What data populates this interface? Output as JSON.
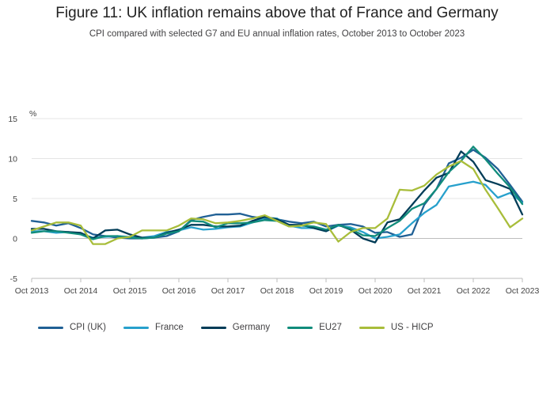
{
  "title": "Figure 11: UK inflation remains above that of France and Germany",
  "subtitle": "CPI compared with selected G7 and EU annual inflation rates, October 2013 to October 2023",
  "chart_data": {
    "type": "line",
    "title": "Figure 11: UK inflation remains above that of France and Germany",
    "subtitle": "CPI compared with selected G7 and EU annual inflation rates, October 2013 to October 2023",
    "xlabel": "",
    "ylabel": "%",
    "ylim": [
      -5,
      15
    ],
    "yticks": [
      -5,
      0,
      5,
      10,
      15
    ],
    "x_start": "Oct 2013",
    "x_end": "Oct 2023",
    "xticks": [
      "Oct 2013",
      "Oct 2014",
      "Oct 2015",
      "Oct 2016",
      "Oct 2017",
      "Oct 2018",
      "Oct 2019",
      "Oct 2020",
      "Oct 2021",
      "Oct 2022",
      "Oct 2023"
    ],
    "legend_position": "bottom",
    "grid": true,
    "series": [
      {
        "name": "CPI (UK)",
        "color": "#206095",
        "x": [
          0,
          3,
          6,
          9,
          12,
          15,
          18,
          21,
          24,
          27,
          30,
          33,
          36,
          39,
          42,
          45,
          48,
          51,
          54,
          57,
          60,
          63,
          66,
          69,
          72,
          75,
          78,
          81,
          84,
          87,
          90,
          93,
          96,
          99,
          102,
          105,
          108,
          111,
          114,
          117,
          120
        ],
        "values": [
          2.2,
          2.0,
          1.6,
          1.9,
          1.3,
          0.5,
          0.3,
          0.1,
          0.0,
          0.0,
          0.1,
          0.3,
          0.9,
          2.3,
          2.7,
          3.0,
          3.0,
          3.1,
          2.7,
          2.5,
          2.4,
          2.1,
          1.9,
          2.1,
          1.5,
          1.7,
          1.8,
          1.5,
          0.7,
          0.8,
          0.2,
          0.5,
          4.2,
          6.2,
          9.4,
          10.1,
          11.1,
          10.1,
          8.7,
          6.7,
          4.6
        ]
      },
      {
        "name": "France",
        "color": "#27a0cc",
        "x": [
          0,
          3,
          6,
          9,
          12,
          15,
          18,
          21,
          24,
          27,
          30,
          33,
          36,
          39,
          42,
          45,
          48,
          51,
          54,
          57,
          60,
          63,
          66,
          69,
          72,
          75,
          78,
          81,
          84,
          87,
          90,
          93,
          96,
          99,
          102,
          105,
          108,
          111,
          114,
          117,
          120
        ],
        "values": [
          0.9,
          0.9,
          0.7,
          0.8,
          0.5,
          0.1,
          0.2,
          0.3,
          0.2,
          0.1,
          0.3,
          0.8,
          1.0,
          1.4,
          1.1,
          1.2,
          1.4,
          1.5,
          2.0,
          2.6,
          2.5,
          1.6,
          1.3,
          1.3,
          0.9,
          1.6,
          1.4,
          0.8,
          0.0,
          0.2,
          0.5,
          1.9,
          3.2,
          4.2,
          6.5,
          6.8,
          7.1,
          6.7,
          5.1,
          5.7,
          4.5
        ]
      },
      {
        "name": "Germany",
        "color": "#003c57",
        "x": [
          0,
          3,
          6,
          9,
          12,
          15,
          18,
          21,
          24,
          27,
          30,
          33,
          36,
          39,
          42,
          45,
          48,
          51,
          54,
          57,
          60,
          63,
          66,
          69,
          72,
          75,
          78,
          81,
          84,
          87,
          90,
          93,
          96,
          99,
          102,
          105,
          108,
          111,
          114,
          117,
          120
        ],
        "values": [
          1.2,
          1.2,
          0.9,
          0.8,
          0.7,
          0.0,
          1.0,
          1.1,
          0.5,
          0.1,
          0.1,
          0.7,
          1.1,
          1.7,
          1.7,
          1.5,
          1.5,
          1.6,
          2.2,
          2.7,
          2.4,
          1.7,
          1.7,
          1.3,
          0.9,
          1.7,
          1.1,
          0.0,
          -0.5,
          2.0,
          2.4,
          4.2,
          6.0,
          7.6,
          8.2,
          10.9,
          9.6,
          7.3,
          6.8,
          6.2,
          3.0
        ]
      },
      {
        "name": "EU27",
        "color": "#118c7b",
        "x": [
          0,
          3,
          6,
          9,
          12,
          15,
          18,
          21,
          24,
          27,
          30,
          33,
          36,
          39,
          42,
          45,
          48,
          51,
          54,
          57,
          60,
          63,
          66,
          69,
          72,
          75,
          78,
          81,
          84,
          87,
          90,
          93,
          96,
          99,
          102,
          105,
          108,
          111,
          114,
          117,
          120
        ],
        "values": [
          0.7,
          0.9,
          0.9,
          0.7,
          0.5,
          -0.1,
          0.3,
          0.3,
          0.1,
          0.0,
          0.1,
          0.6,
          0.9,
          2.2,
          2.1,
          1.4,
          1.9,
          1.9,
          2.0,
          2.3,
          2.2,
          1.5,
          1.6,
          1.5,
          1.1,
          1.7,
          1.2,
          0.4,
          0.3,
          1.3,
          2.2,
          3.7,
          4.4,
          6.2,
          8.3,
          9.7,
          11.5,
          9.9,
          8.1,
          6.4,
          4.3
        ]
      },
      {
        "name": "US - HICP",
        "color": "#a8bd3a",
        "x": [
          0,
          3,
          6,
          9,
          12,
          15,
          18,
          21,
          24,
          27,
          30,
          33,
          36,
          39,
          42,
          45,
          48,
          51,
          54,
          57,
          60,
          63,
          66,
          69,
          72,
          75,
          78,
          81,
          84,
          87,
          90,
          93,
          96,
          99,
          102,
          105,
          108,
          111,
          114,
          117,
          120
        ],
        "values": [
          1.0,
          1.5,
          2.0,
          2.0,
          1.6,
          -0.7,
          -0.7,
          0.0,
          0.2,
          1.0,
          1.0,
          1.0,
          1.6,
          2.5,
          2.4,
          1.9,
          2.0,
          2.2,
          2.5,
          2.9,
          2.2,
          1.5,
          1.6,
          2.0,
          1.8,
          -0.4,
          0.8,
          1.3,
          1.3,
          2.5,
          6.1,
          6.0,
          6.6,
          8.0,
          9.0,
          9.7,
          8.7,
          6.1,
          3.8,
          1.4,
          2.5
        ]
      }
    ]
  }
}
